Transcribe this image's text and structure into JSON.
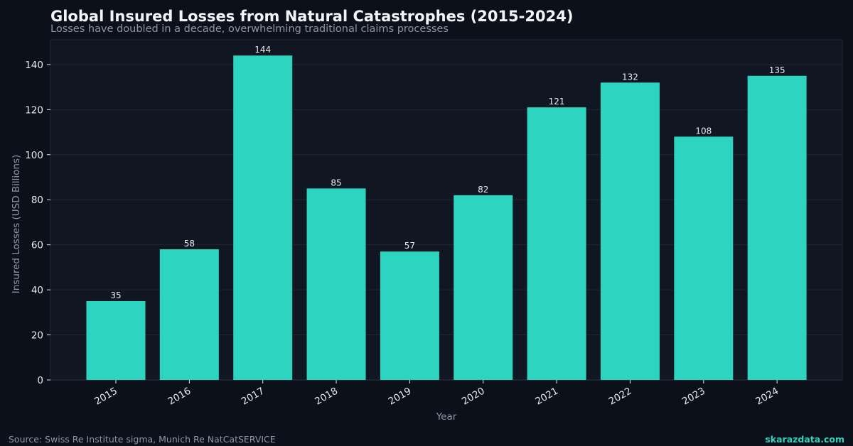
{
  "title": "Global Insured Losses from Natural Catastrophes (2015-2024)",
  "subtitle": "Losses have doubled in a decade, overwhelming traditional claims processes",
  "source": "Source: Swiss Re Institute sigma, Munich Re NatCatSERVICE",
  "brand": "skarazdata.com",
  "colors": {
    "bar": "#2dd4bf",
    "background": "#0b101a",
    "plot_background": "#111722",
    "grid": "#1f2733"
  },
  "chart_data": {
    "type": "bar",
    "categories": [
      "2015",
      "2016",
      "2017",
      "2018",
      "2019",
      "2020",
      "2021",
      "2022",
      "2023",
      "2024"
    ],
    "values": [
      35,
      58,
      144,
      85,
      57,
      82,
      121,
      132,
      108,
      135
    ],
    "data_labels": [
      "35",
      "58",
      "144",
      "85",
      "57",
      "82",
      "121",
      "132",
      "108",
      "135"
    ],
    "xlabel": "Year",
    "ylabel": "Insured Losses (USD Billions)",
    "ylim": [
      0,
      151
    ],
    "yticks": [
      0,
      20,
      40,
      60,
      80,
      100,
      120,
      140
    ],
    "grid": true
  }
}
